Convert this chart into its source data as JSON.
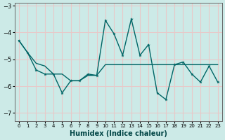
{
  "xlabel": "Humidex (Indice chaleur)",
  "ylabel": "",
  "background_color": "#cceae7",
  "grid_color": "#e8c8c8",
  "line_color": "#006666",
  "xlim": [
    -0.5,
    23.5
  ],
  "ylim": [
    -7.3,
    -2.9
  ],
  "yticks": [
    -7,
    -6,
    -5,
    -4,
    -3
  ],
  "xticks": [
    0,
    1,
    2,
    3,
    4,
    5,
    6,
    7,
    8,
    9,
    10,
    11,
    12,
    13,
    14,
    15,
    16,
    17,
    18,
    19,
    20,
    21,
    22,
    23
  ],
  "series1_x": [
    0,
    1,
    2,
    3,
    4,
    5,
    6,
    7,
    8,
    9,
    10,
    11,
    12,
    13,
    14,
    15,
    16,
    17,
    18,
    19,
    20,
    21,
    22,
    23
  ],
  "series1_y": [
    -4.3,
    -4.75,
    -5.15,
    -5.25,
    -5.55,
    -5.55,
    -5.8,
    -5.8,
    -5.6,
    -5.6,
    -5.2,
    -5.2,
    -5.2,
    -5.2,
    -5.2,
    -5.2,
    -5.2,
    -5.2,
    -5.2,
    -5.2,
    -5.2,
    -5.2,
    -5.2,
    -5.2
  ],
  "series2_x": [
    0,
    1,
    2,
    3,
    4,
    5,
    6,
    7,
    8,
    9,
    10,
    11,
    12,
    13,
    14,
    15,
    16,
    17,
    18,
    19,
    20,
    21,
    22,
    23
  ],
  "series2_y": [
    -4.3,
    -4.75,
    -5.4,
    -5.55,
    -5.55,
    -6.25,
    -5.8,
    -5.8,
    -5.55,
    -5.6,
    -3.55,
    -4.05,
    -4.85,
    -3.5,
    -4.85,
    -4.45,
    -6.25,
    -6.5,
    -5.2,
    -5.1,
    -5.55,
    -5.85,
    -5.25,
    -5.85
  ],
  "xlabel_fontsize": 7,
  "ytick_fontsize": 6,
  "xtick_fontsize": 5
}
